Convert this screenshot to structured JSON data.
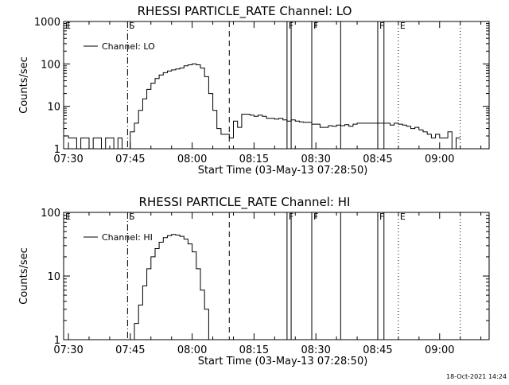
{
  "footer": {
    "timestamp": "18-Oct-2021 14:24"
  },
  "chart_data": [
    {
      "type": "line",
      "title": "RHESSI PARTICLE_RATE Channel: LO",
      "xlabel": "Start Time (03-May-13 07:28:50)",
      "ylabel": "Counts/sec",
      "yscale": "log",
      "ylim": [
        1,
        1000
      ],
      "xlim": [
        "07:28:50",
        "09:12:00"
      ],
      "x_ticks": [
        "07:30",
        "07:45",
        "08:00",
        "08:15",
        "08:30",
        "08:45",
        "09:00"
      ],
      "y_ticks": [
        "1",
        "10",
        "100",
        "1000"
      ],
      "legend": {
        "position": "top-left",
        "entries": [
          "Channel: LO"
        ]
      },
      "markers": [
        {
          "label": "E",
          "time": "07:28:50",
          "style": "dotted"
        },
        {
          "label": "S",
          "time": "07:44:20",
          "style": "dash-dot"
        },
        {
          "label": "",
          "time": "08:09:00",
          "style": "dashed"
        },
        {
          "label": "F",
          "time": "08:23:00",
          "style": "solid"
        },
        {
          "label": "",
          "time": "08:24:00",
          "style": "solid"
        },
        {
          "label": "F",
          "time": "08:29:00",
          "style": "solid"
        },
        {
          "label": "",
          "time": "08:36:00",
          "style": "solid"
        },
        {
          "label": "F",
          "time": "08:45:00",
          "style": "solid"
        },
        {
          "label": "",
          "time": "08:46:30",
          "style": "solid"
        },
        {
          "label": "E",
          "time": "08:50:00",
          "style": "dotted"
        },
        {
          "label": "",
          "time": "09:05:00",
          "style": "dotted"
        }
      ],
      "series": [
        {
          "name": "Channel: LO",
          "x": [
            "07:29",
            "07:30",
            "07:31",
            "07:32",
            "07:33",
            "07:34",
            "07:35",
            "07:36",
            "07:37",
            "07:38",
            "07:39",
            "07:40",
            "07:41",
            "07:42",
            "07:43",
            "07:44",
            "07:45",
            "07:46",
            "07:47",
            "07:48",
            "07:49",
            "07:50",
            "07:51",
            "07:52",
            "07:53",
            "07:54",
            "07:55",
            "07:56",
            "07:57",
            "07:58",
            "07:59",
            "08:00",
            "08:01",
            "08:02",
            "08:03",
            "08:04",
            "08:05",
            "08:06",
            "08:07",
            "08:08",
            "08:09",
            "08:10",
            "08:11",
            "08:12",
            "08:13",
            "08:14",
            "08:15",
            "08:16",
            "08:17",
            "08:18",
            "08:19",
            "08:20",
            "08:21",
            "08:22",
            "08:23",
            "08:24",
            "08:25",
            "08:26",
            "08:27",
            "08:28",
            "08:29",
            "08:30",
            "08:31",
            "08:32",
            "08:33",
            "08:34",
            "08:35",
            "08:36",
            "08:37",
            "08:38",
            "08:39",
            "08:40",
            "08:41",
            "08:42",
            "08:43",
            "08:44",
            "08:45",
            "08:46",
            "08:47",
            "08:48",
            "08:49",
            "08:50",
            "08:51",
            "08:52",
            "08:53",
            "08:54",
            "08:55",
            "08:56",
            "08:57",
            "08:58",
            "08:59",
            "09:00",
            "09:01",
            "09:02",
            "09:03",
            "09:04",
            "09:05"
          ],
          "y": [
            2,
            1.8,
            1.8,
            1,
            1.8,
            1.8,
            1,
            1.8,
            1.8,
            1,
            1.8,
            1.8,
            1,
            1.8,
            1,
            1,
            2.5,
            4,
            8,
            15,
            25,
            35,
            45,
            55,
            62,
            68,
            72,
            76,
            80,
            90,
            95,
            100,
            95,
            80,
            50,
            20,
            8,
            3,
            2.2,
            2.2,
            1.8,
            4.5,
            3.2,
            6.5,
            6.5,
            6.2,
            5.8,
            6.2,
            5.8,
            5.2,
            5.2,
            5.0,
            5.2,
            4.8,
            4.5,
            4.8,
            4.5,
            4.3,
            4.2,
            4.2,
            3.8,
            3.8,
            3.2,
            3.2,
            3.5,
            3.4,
            3.6,
            3.5,
            3.7,
            3.4,
            3.8,
            4.0,
            4.0,
            4.0,
            4.0,
            4.0,
            4.0,
            4.0,
            4.0,
            3.6,
            4.0,
            3.8,
            3.6,
            3.4,
            3.0,
            3.2,
            2.8,
            2.5,
            2.2,
            1.8,
            2.2,
            1.8,
            1.8,
            2.5,
            1,
            1.8,
            1.8
          ]
        }
      ]
    },
    {
      "type": "line",
      "title": "RHESSI PARTICLE_RATE Channel: HI",
      "xlabel": "Start Time (03-May-13 07:28:50)",
      "ylabel": "Counts/sec",
      "yscale": "log",
      "ylim": [
        1,
        100
      ],
      "xlim": [
        "07:28:50",
        "09:12:00"
      ],
      "x_ticks": [
        "07:30",
        "07:45",
        "08:00",
        "08:15",
        "08:30",
        "08:45",
        "09:00"
      ],
      "y_ticks": [
        "1",
        "10",
        "100"
      ],
      "legend": {
        "position": "top-left",
        "entries": [
          "Channel: HI"
        ]
      },
      "markers": [
        {
          "label": "E",
          "time": "07:28:50",
          "style": "dotted"
        },
        {
          "label": "S",
          "time": "07:44:20",
          "style": "dash-dot"
        },
        {
          "label": "",
          "time": "08:09:00",
          "style": "dashed"
        },
        {
          "label": "F",
          "time": "08:23:00",
          "style": "solid"
        },
        {
          "label": "",
          "time": "08:24:00",
          "style": "solid"
        },
        {
          "label": "F",
          "time": "08:29:00",
          "style": "solid"
        },
        {
          "label": "",
          "time": "08:36:00",
          "style": "solid"
        },
        {
          "label": "F",
          "time": "08:45:00",
          "style": "solid"
        },
        {
          "label": "",
          "time": "08:46:30",
          "style": "solid"
        },
        {
          "label": "E",
          "time": "08:50:00",
          "style": "dotted"
        },
        {
          "label": "",
          "time": "09:05:00",
          "style": "dotted"
        }
      ],
      "series": [
        {
          "name": "Channel: HI",
          "x": [
            "07:45",
            "07:46",
            "07:47",
            "07:48",
            "07:49",
            "07:50",
            "07:51",
            "07:52",
            "07:53",
            "07:54",
            "07:55",
            "07:56",
            "07:57",
            "07:58",
            "07:59",
            "08:00",
            "08:01",
            "08:02",
            "08:03",
            "08:04"
          ],
          "y": [
            1.0,
            1.8,
            3.5,
            7,
            13,
            20,
            27,
            34,
            40,
            43,
            45,
            44,
            42,
            38,
            32,
            24,
            13,
            6,
            3,
            1.0
          ]
        }
      ]
    }
  ]
}
